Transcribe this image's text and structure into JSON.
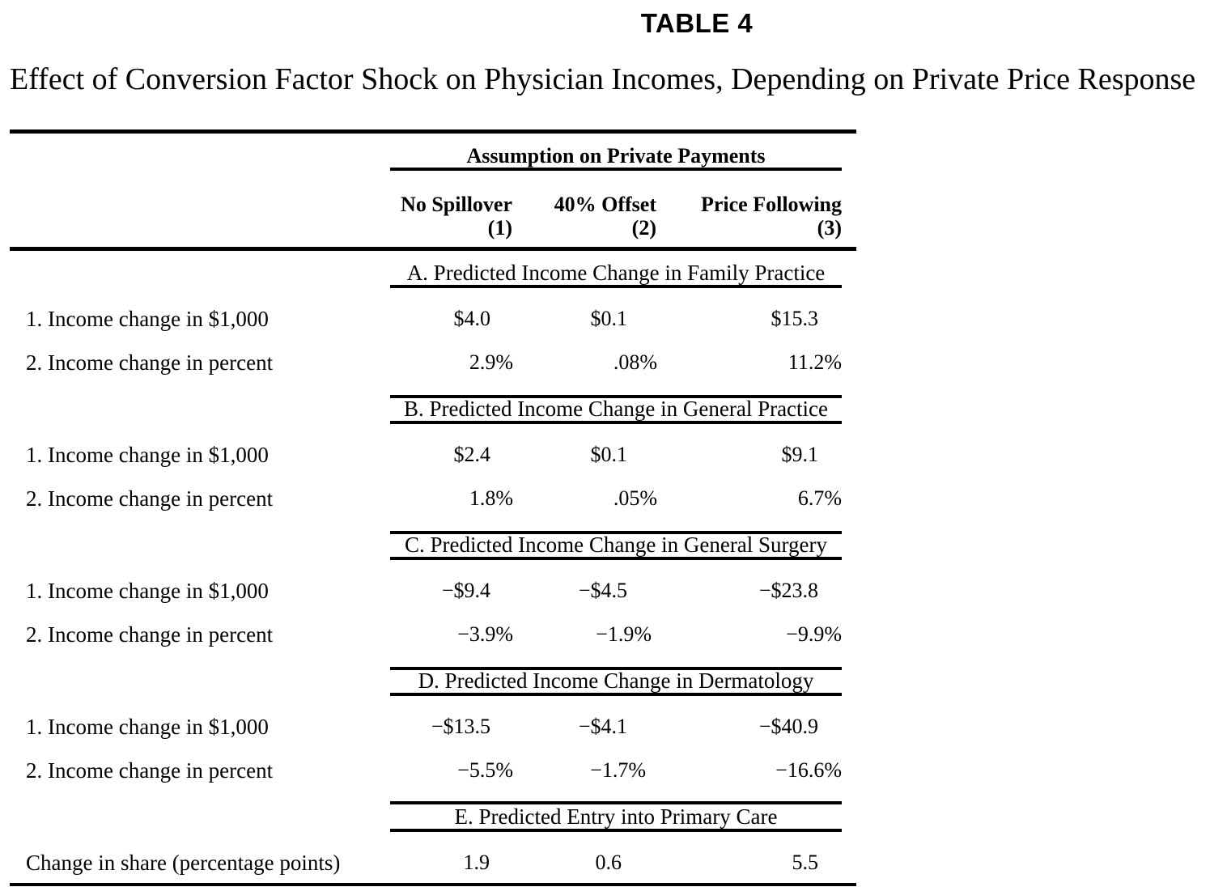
{
  "table_label": "TABLE 4",
  "title": "Effect of Conversion Factor Shock on Physician Incomes, Depending on Private Price Response",
  "spanner": "Assumption on Private Payments",
  "columns": [
    {
      "label": "No Spillover",
      "number": "(1)"
    },
    {
      "label": "40% Offset",
      "number": "(2)"
    },
    {
      "label": "Price Following",
      "number": "(3)"
    }
  ],
  "panels": [
    {
      "title": "A. Predicted Income Change in Family Practice",
      "rows": [
        {
          "label": "1. Income change in $1,000",
          "values": [
            "$4.0",
            "$0.1",
            "$15.3"
          ]
        },
        {
          "label": "2. Income change in percent",
          "values": [
            "2.9%",
            ".08%",
            "11.2%"
          ]
        }
      ]
    },
    {
      "title": "B. Predicted Income Change in General Practice",
      "rows": [
        {
          "label": "1. Income change in $1,000",
          "values": [
            "$2.4",
            "$0.1",
            "$9.1"
          ]
        },
        {
          "label": "2. Income change in percent",
          "values": [
            "1.8%",
            ".05%",
            "6.7%"
          ]
        }
      ]
    },
    {
      "title": "C. Predicted Income Change in General Surgery",
      "rows": [
        {
          "label": "1. Income change in $1,000",
          "values": [
            "−$9.4",
            "−$4.5",
            "−$23.8"
          ]
        },
        {
          "label": "2. Income change in percent",
          "values": [
            "−3.9%",
            "−1.9%",
            "−9.9%"
          ]
        }
      ]
    },
    {
      "title": "D. Predicted Income Change in Dermatology",
      "rows": [
        {
          "label": "1. Income change in $1,000",
          "values": [
            "−$13.5",
            "−$4.1",
            "−$40.9"
          ]
        },
        {
          "label": "2. Income change in percent",
          "values": [
            "−5.5%",
            "−1.7%",
            "−16.6%"
          ]
        }
      ]
    },
    {
      "title": "E. Predicted Entry into Primary Care",
      "rows": [
        {
          "label": "Change in share (percentage points)",
          "values": [
            "1.9",
            "0.6",
            "5.5"
          ]
        }
      ]
    }
  ]
}
